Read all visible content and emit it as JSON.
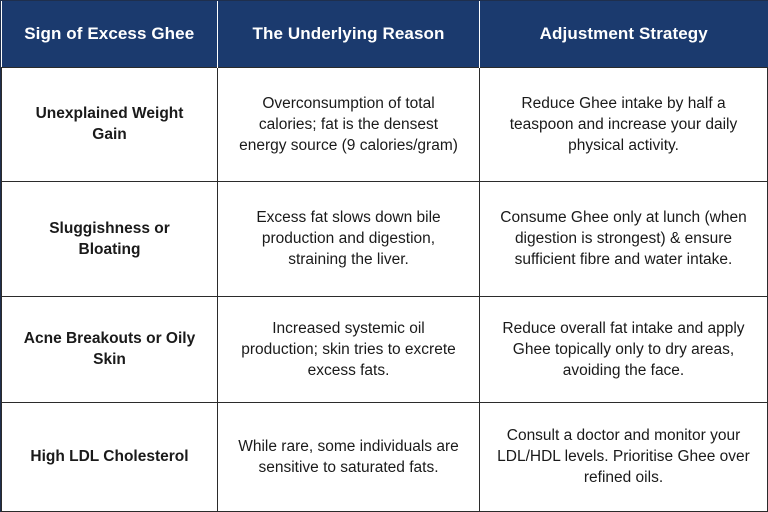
{
  "headers": {
    "col1": "Sign of Excess Ghee",
    "col2": "The Underlying Reason",
    "col3": "Adjustment Strategy"
  },
  "rows": [
    {
      "sign": "Unexplained Weight Gain",
      "reason": "Overconsumption of total calories; fat is the densest energy source (9 calories/gram)",
      "strategy": "Reduce Ghee intake by half a teaspoon and increase your daily physical activity."
    },
    {
      "sign": "Sluggishness or Bloating",
      "reason": "Excess fat slows down bile production and digestion, straining the liver.",
      "strategy": "Consume Ghee only at lunch (when digestion is strongest) & ensure sufficient fibre and water intake."
    },
    {
      "sign": "Acne Breakouts or Oily Skin",
      "reason": "Increased systemic oil production; skin tries to excrete excess fats.",
      "strategy": "Reduce overall fat intake and apply Ghee topically only to dry areas, avoiding the face."
    },
    {
      "sign": "High LDL Cholesterol",
      "reason": "While rare, some individuals are sensitive to saturated fats.",
      "strategy": "Consult a doctor and monitor your LDL/HDL levels. Prioritise Ghee over refined oils."
    }
  ],
  "colors": {
    "header_bg": "#1b3a6e",
    "header_text": "#ffffff",
    "border": "#2b2b2b"
  }
}
